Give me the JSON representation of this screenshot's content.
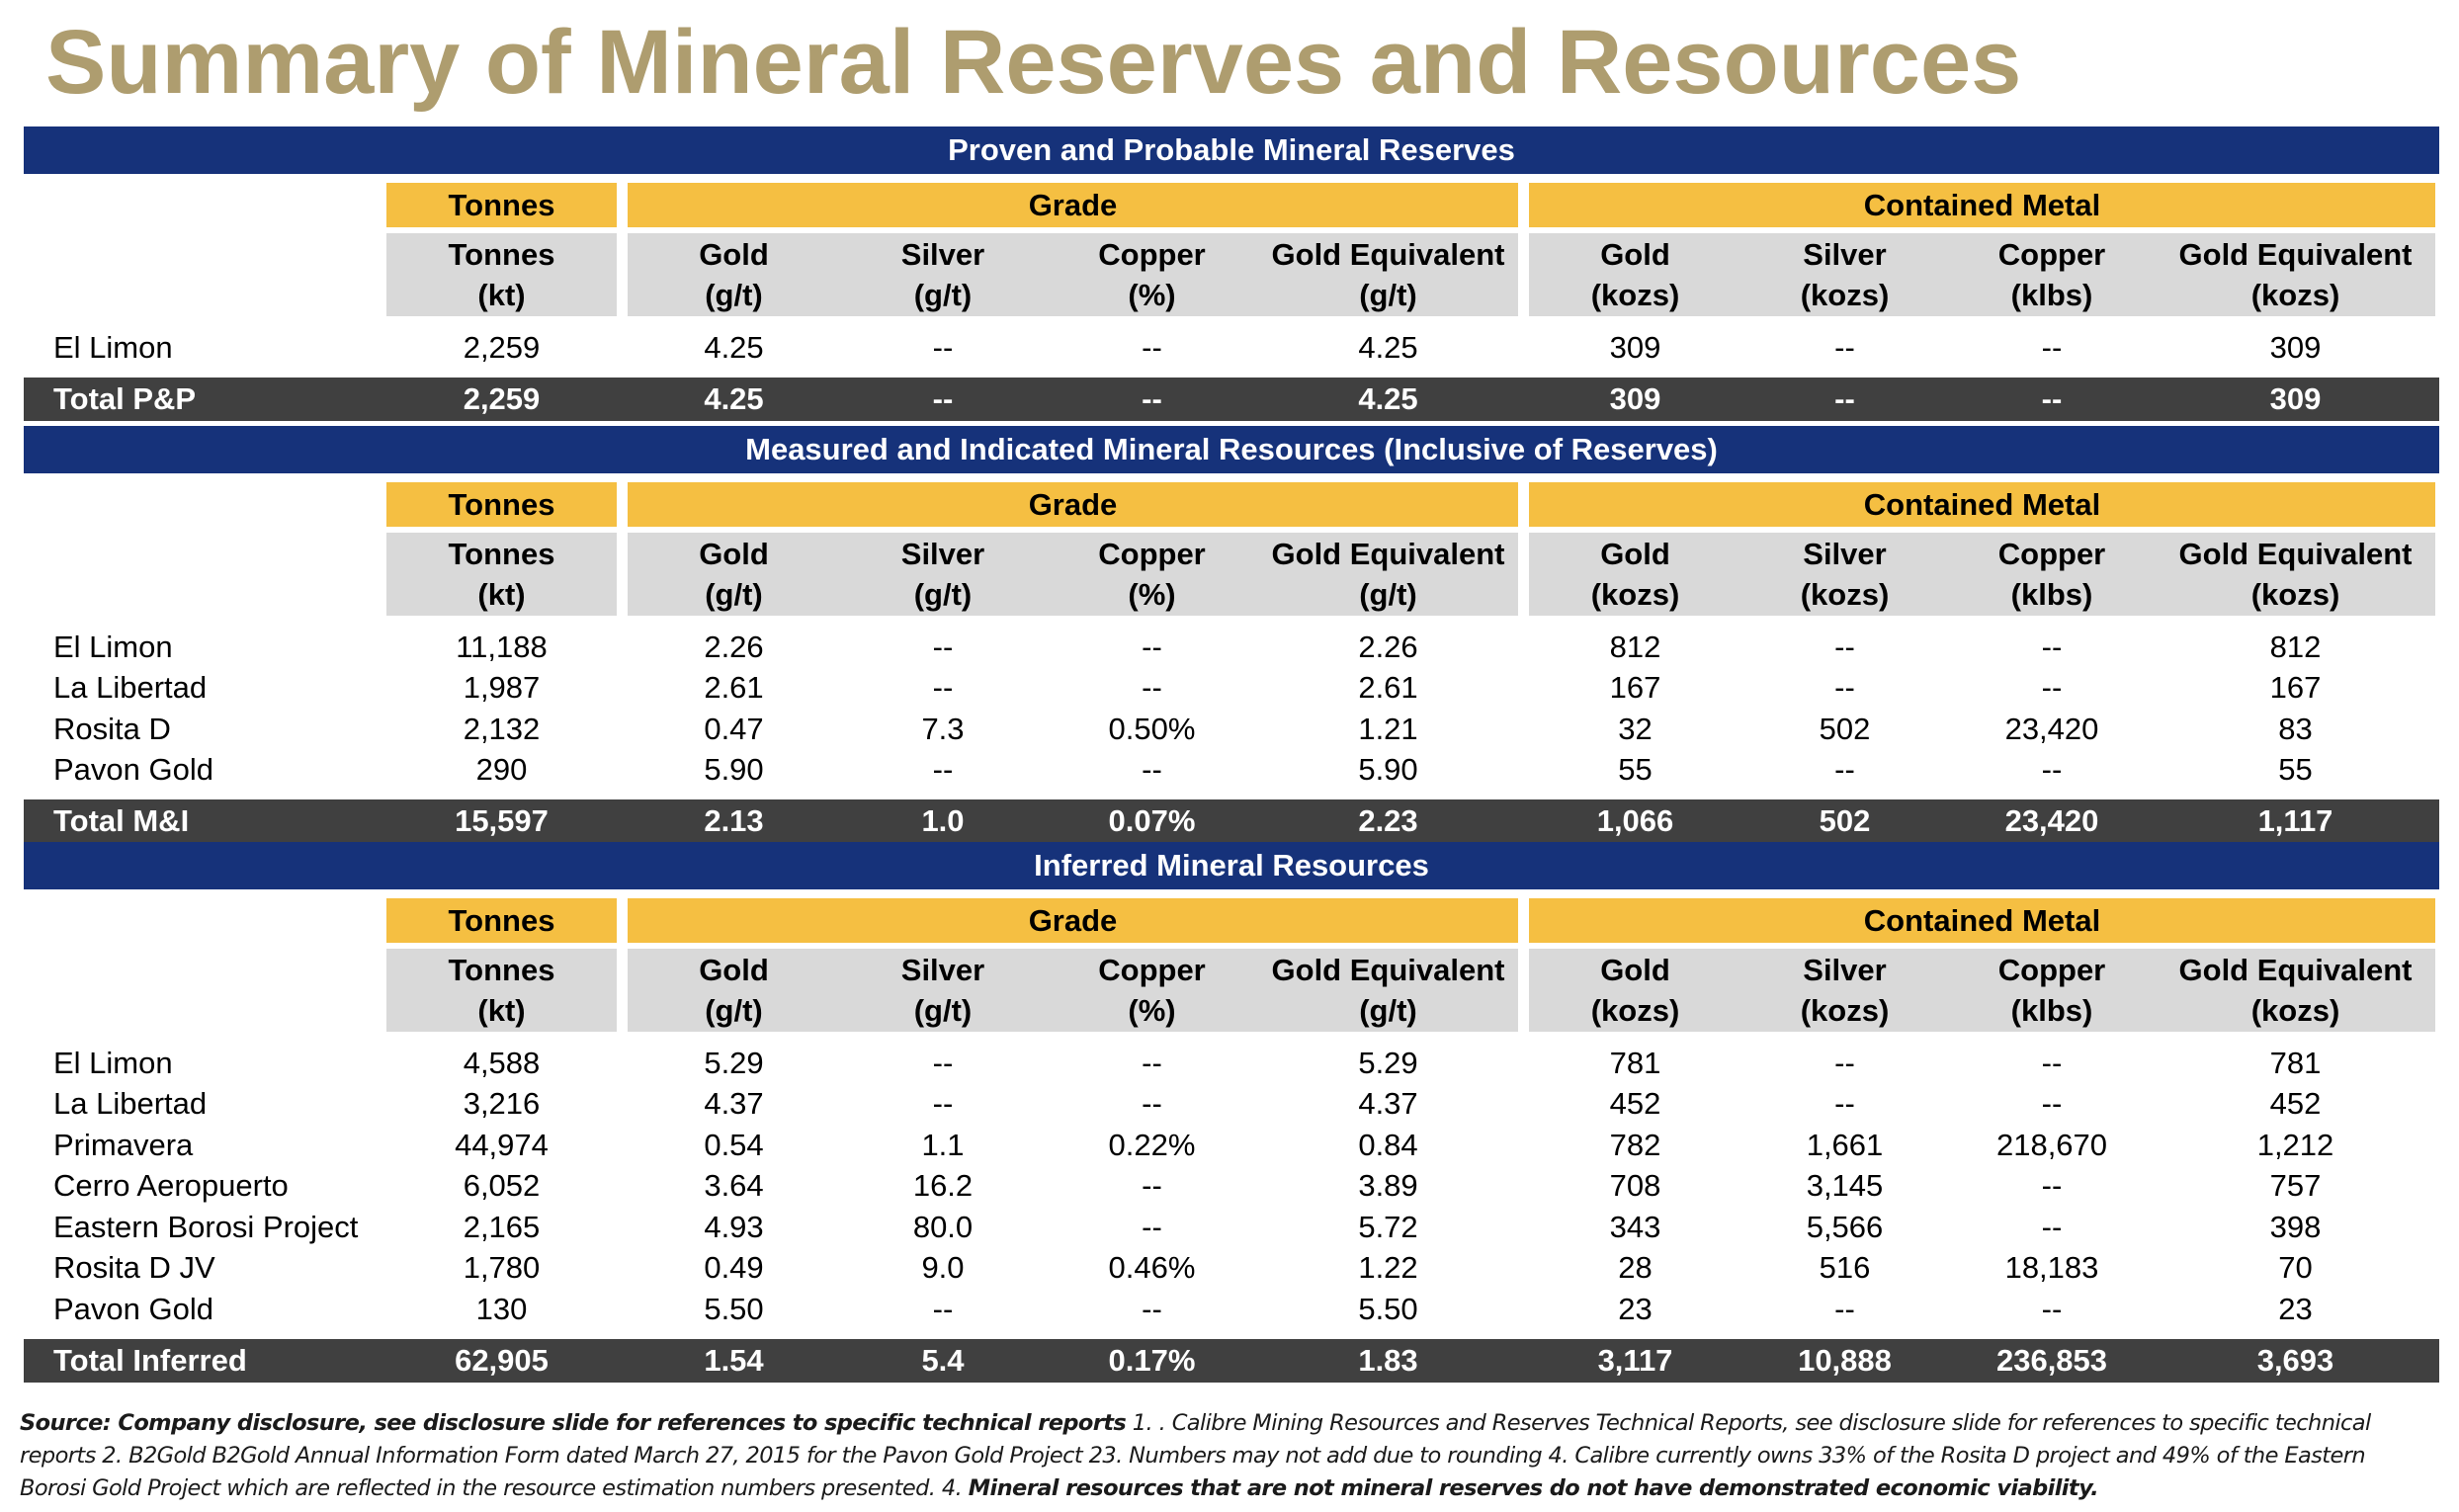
{
  "title": "Summary of Mineral Reserves and Resources",
  "group_headers": {
    "tonnes": "Tonnes",
    "grade": "Grade",
    "contained_metal": "Contained Metal"
  },
  "column_headers": [
    {
      "line1": "Tonnes",
      "line2": "(kt)"
    },
    {
      "line1": "Gold",
      "line2": "(g/t)"
    },
    {
      "line1": "Silver",
      "line2": "(g/t)"
    },
    {
      "line1": "Copper",
      "line2": "(%)"
    },
    {
      "line1": "Gold Equivalent",
      "line2": "(g/t)"
    },
    {
      "line1": "Gold",
      "line2": "(kozs)"
    },
    {
      "line1": "Silver",
      "line2": "(kozs)"
    },
    {
      "line1": "Copper",
      "line2": "(klbs)"
    },
    {
      "line1": "Gold Equivalent",
      "line2": "(kozs)"
    }
  ],
  "sections": [
    {
      "title": "Proven and Probable Mineral Reserves",
      "rows": [
        {
          "name": "El Limon",
          "values": [
            "2,259",
            "4.25",
            "--",
            "--",
            "4.25",
            "309",
            "--",
            "--",
            "309"
          ]
        }
      ],
      "total": {
        "name": "Total P&P",
        "values": [
          "2,259",
          "4.25",
          "--",
          "--",
          "4.25",
          "309",
          "--",
          "--",
          "309"
        ]
      }
    },
    {
      "title": "Measured and Indicated Mineral Resources (Inclusive of Reserves)",
      "rows": [
        {
          "name": "El Limon",
          "values": [
            "11,188",
            "2.26",
            "--",
            "--",
            "2.26",
            "812",
            "--",
            "--",
            "812"
          ]
        },
        {
          "name": "La Libertad",
          "values": [
            "1,987",
            "2.61",
            "--",
            "--",
            "2.61",
            "167",
            "--",
            "--",
            "167"
          ]
        },
        {
          "name": "Rosita D",
          "values": [
            "2,132",
            "0.47",
            "7.3",
            "0.50%",
            "1.21",
            "32",
            "502",
            "23,420",
            "83"
          ]
        },
        {
          "name": "Pavon Gold",
          "values": [
            "290",
            "5.90",
            "--",
            "--",
            "5.90",
            "55",
            "--",
            "--",
            "55"
          ]
        }
      ],
      "total": {
        "name": "Total M&I",
        "values": [
          "15,597",
          "2.13",
          "1.0",
          "0.07%",
          "2.23",
          "1,066",
          "502",
          "23,420",
          "1,117"
        ]
      }
    },
    {
      "title": "Inferred Mineral Resources",
      "rows": [
        {
          "name": "El Limon",
          "values": [
            "4,588",
            "5.29",
            "--",
            "--",
            "5.29",
            "781",
            "--",
            "--",
            "781"
          ]
        },
        {
          "name": "La Libertad",
          "values": [
            "3,216",
            "4.37",
            "--",
            "--",
            "4.37",
            "452",
            "--",
            "--",
            "452"
          ]
        },
        {
          "name": "Primavera",
          "values": [
            "44,974",
            "0.54",
            "1.1",
            "0.22%",
            "0.84",
            "782",
            "1,661",
            "218,670",
            "1,212"
          ]
        },
        {
          "name": "Cerro Aeropuerto",
          "values": [
            "6,052",
            "3.64",
            "16.2",
            "--",
            "3.89",
            "708",
            "3,145",
            "--",
            "757"
          ]
        },
        {
          "name": "Eastern Borosi Project",
          "values": [
            "2,165",
            "4.93",
            "80.0",
            "--",
            "5.72",
            "343",
            "5,566",
            "--",
            "398"
          ]
        },
        {
          "name": "Rosita D JV",
          "values": [
            "1,780",
            "0.49",
            "9.0",
            "0.46%",
            "1.22",
            "28",
            "516",
            "18,183",
            "70"
          ]
        },
        {
          "name": "Pavon Gold",
          "values": [
            "130",
            "5.50",
            "--",
            "--",
            "5.50",
            "23",
            "--",
            "--",
            "23"
          ]
        }
      ],
      "total": {
        "name": "Total Inferred",
        "values": [
          "62,905",
          "1.54",
          "5.4",
          "0.17%",
          "1.83",
          "3,117",
          "10,888",
          "236,853",
          "3,693"
        ]
      }
    }
  ],
  "footnote": {
    "bold_lead": "Source: Company disclosure, see disclosure slide for references to specific technical reports",
    "body": " 1. . Calibre Mining Resources and Reserves Technical Reports, see disclosure slide for references to specific technical reports 2. B2Gold B2Gold Annual Information Form dated March 27, 2015 for the Pavon Gold Project  23. Numbers may not add due to rounding 4. Calibre currently owns 33% of the Rosita D project and 49% of the Eastern Borosi Gold Project which are reflected in the resource estimation numbers presented. 4. ",
    "bold_tail": "Mineral resources that are not mineral reserves do not have demonstrated economic viability."
  },
  "colors": {
    "title": "#AE9D6F",
    "section_band": "#16327A",
    "group_header": "#F5BF42",
    "column_header": "#D9D9D9",
    "total_row": "#404040"
  }
}
